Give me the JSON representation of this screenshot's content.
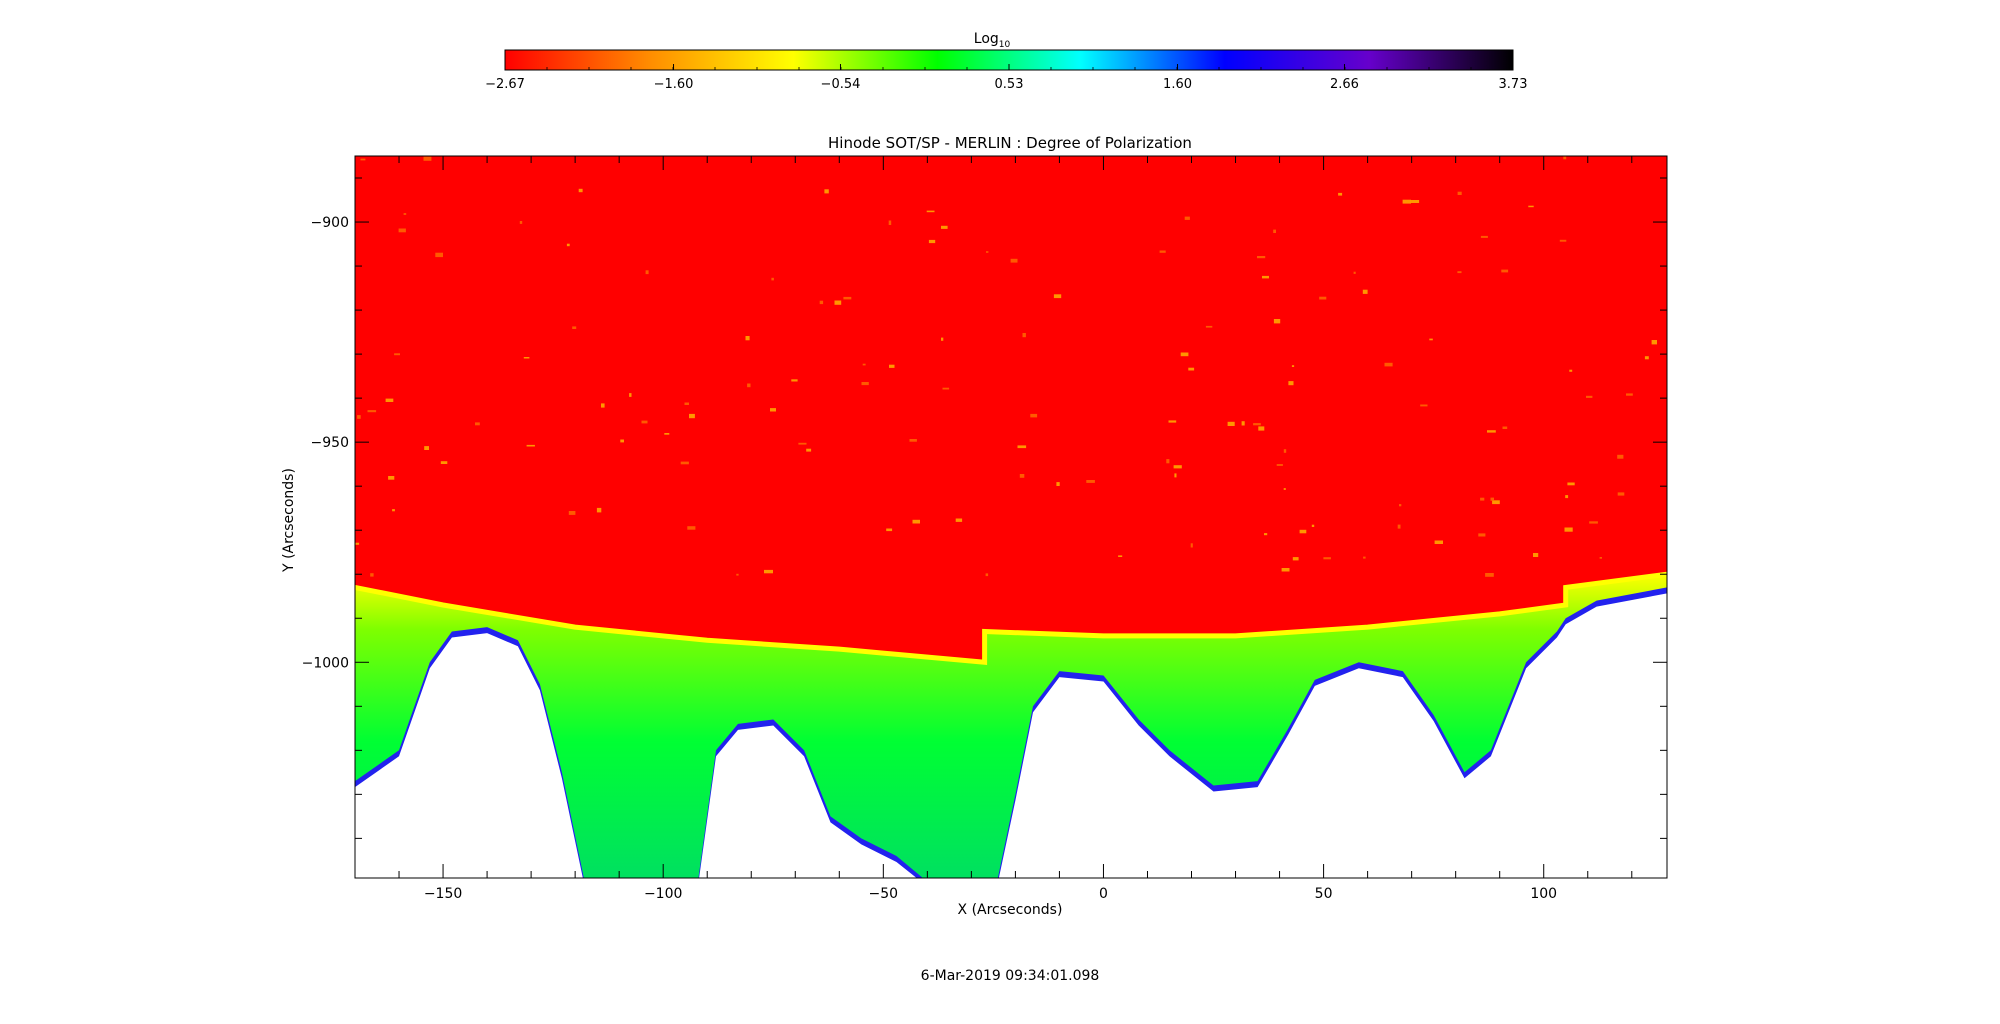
{
  "chart_data": {
    "type": "heatmap",
    "title": "Hinode SOT/SP - MERLIN : Degree of Polarization",
    "xlabel": "X (Arcseconds)",
    "ylabel": "Y (Arcseconds)",
    "xlim": [
      -170,
      128
    ],
    "ylim": [
      -1049,
      -885
    ],
    "x_ticks": [
      -150,
      -100,
      -50,
      0,
      50,
      100
    ],
    "x_tick_labels": [
      "−150",
      "−100",
      "−50",
      "0",
      "50",
      "100"
    ],
    "y_ticks": [
      -900,
      -950,
      -1000
    ],
    "y_tick_labels": [
      "−900",
      "−950",
      "−1000"
    ],
    "colorbar": {
      "label_base": "Log",
      "label_sub": "10",
      "min": -2.67,
      "max": 3.73,
      "tick_values": [
        -2.67,
        -1.6,
        -0.54,
        0.53,
        1.6,
        2.66,
        3.73
      ],
      "tick_labels": [
        "−2.67",
        "−1.60",
        "−0.54",
        "0.53",
        "1.60",
        "2.66",
        "3.73"
      ],
      "colors": [
        "#ff0000",
        "#ff8c00",
        "#ffff00",
        "#00ff00",
        "#00ffff",
        "#0000ff",
        "#6600cc",
        "#000000"
      ]
    },
    "limb_boundary": [
      {
        "x": -170,
        "y": -983
      },
      {
        "x": -150,
        "y": -987
      },
      {
        "x": -120,
        "y": -992
      },
      {
        "x": -90,
        "y": -995
      },
      {
        "x": -60,
        "y": -997
      },
      {
        "x": -27,
        "y": -1000
      },
      {
        "x": -27,
        "y": -993
      },
      {
        "x": 0,
        "y": -994
      },
      {
        "x": 30,
        "y": -994
      },
      {
        "x": 60,
        "y": -992
      },
      {
        "x": 90,
        "y": -989
      },
      {
        "x": 105,
        "y": -987
      },
      {
        "x": 105,
        "y": -983
      },
      {
        "x": 128,
        "y": -980
      }
    ],
    "data_extent_bottom": [
      {
        "x": -170,
        "y": -1027
      },
      {
        "x": -160,
        "y": -1020
      },
      {
        "x": -153,
        "y": -1000
      },
      {
        "x": -148,
        "y": -993
      },
      {
        "x": -140,
        "y": -992
      },
      {
        "x": -133,
        "y": -995
      },
      {
        "x": -128,
        "y": -1005
      },
      {
        "x": -123,
        "y": -1025
      },
      {
        "x": -118,
        "y": -1049
      },
      {
        "x": -92,
        "y": -1049
      },
      {
        "x": -88,
        "y": -1020
      },
      {
        "x": -83,
        "y": -1014
      },
      {
        "x": -75,
        "y": -1013
      },
      {
        "x": -68,
        "y": -1020
      },
      {
        "x": -62,
        "y": -1035
      },
      {
        "x": -55,
        "y": -1040
      },
      {
        "x": -47,
        "y": -1044
      },
      {
        "x": -41,
        "y": -1049
      },
      {
        "x": -24,
        "y": -1049
      },
      {
        "x": -20,
        "y": -1030
      },
      {
        "x": -16,
        "y": -1010
      },
      {
        "x": -10,
        "y": -1002
      },
      {
        "x": 0,
        "y": -1003
      },
      {
        "x": 8,
        "y": -1013
      },
      {
        "x": 15,
        "y": -1020
      },
      {
        "x": 25,
        "y": -1028
      },
      {
        "x": 35,
        "y": -1027
      },
      {
        "x": 42,
        "y": -1015
      },
      {
        "x": 48,
        "y": -1004
      },
      {
        "x": 58,
        "y": -1000
      },
      {
        "x": 68,
        "y": -1002
      },
      {
        "x": 75,
        "y": -1012
      },
      {
        "x": 82,
        "y": -1025
      },
      {
        "x": 88,
        "y": -1020
      },
      {
        "x": 96,
        "y": -1000
      },
      {
        "x": 103,
        "y": -993
      },
      {
        "x": 105,
        "y": -990
      },
      {
        "x": 112,
        "y": -986
      },
      {
        "x": 128,
        "y": -983
      }
    ],
    "annotation": "6-Mar-2019 09:34:01.098"
  }
}
